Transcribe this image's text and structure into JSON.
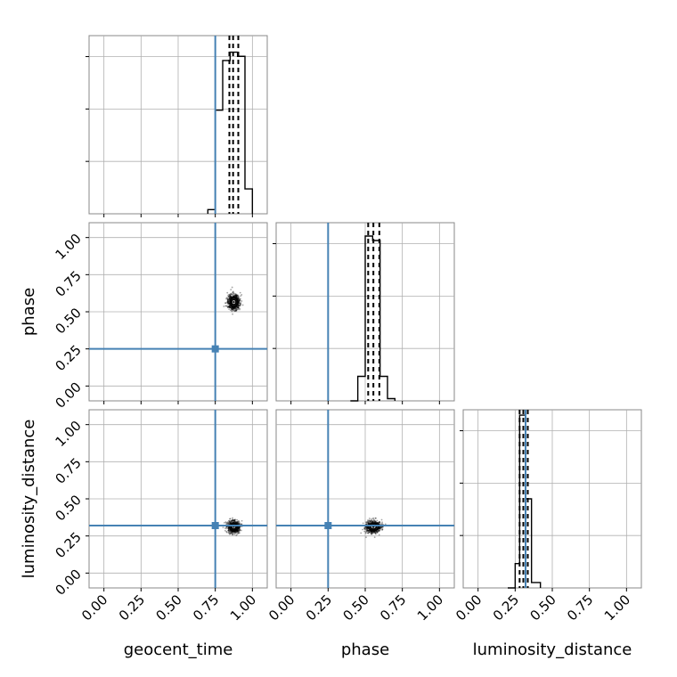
{
  "chart_data": {
    "type": "corner",
    "parameters": [
      "geocent_time",
      "phase",
      "luminosity_distance"
    ],
    "range": [
      -0.1,
      1.1
    ],
    "tick_values": [
      0.0,
      0.25,
      0.5,
      0.75,
      1.0
    ],
    "tick_labels": [
      "0.00",
      "0.25",
      "0.50",
      "0.75",
      "1.00"
    ],
    "grid": true,
    "truth_color": "#4682b4",
    "truths": {
      "geocent_time": 0.75,
      "phase": 0.25,
      "luminosity_distance": 0.32
    },
    "histograms": {
      "geocent_time": {
        "bins": [
          [
            0.7,
            0.75,
            0.01
          ],
          [
            0.75,
            0.8,
            0.25
          ],
          [
            0.8,
            0.85,
            0.37
          ],
          [
            0.85,
            0.9,
            0.39
          ],
          [
            0.9,
            0.95,
            0.38
          ],
          [
            0.95,
            1.0,
            0.06
          ]
        ],
        "ymax": 0.43,
        "quantiles": [
          0.845,
          0.87,
          0.905
        ]
      },
      "phase": {
        "bins": [
          [
            0.4,
            0.45,
            0.0
          ],
          [
            0.45,
            0.5,
            0.055
          ],
          [
            0.5,
            0.55,
            0.37
          ],
          [
            0.55,
            0.6,
            0.36
          ],
          [
            0.6,
            0.65,
            0.055
          ],
          [
            0.65,
            0.7,
            0.005
          ]
        ],
        "ymax": 0.4,
        "quantiles": [
          0.52,
          0.555,
          0.595
        ]
      },
      "luminosity_distance": {
        "bins": [
          [
            0.2,
            0.25,
            0.0
          ],
          [
            0.25,
            0.28,
            0.045
          ],
          [
            0.28,
            0.32,
            0.32
          ],
          [
            0.32,
            0.36,
            0.165
          ],
          [
            0.36,
            0.42,
            0.01
          ]
        ],
        "ymax": 0.33,
        "quantiles": [
          0.28,
          0.305,
          0.335
        ]
      }
    },
    "scatter_2d": [
      {
        "x": "geocent_time",
        "y": "phase",
        "center": [
          0.875,
          0.565
        ],
        "spread": [
          0.035,
          0.045
        ]
      },
      {
        "x": "geocent_time",
        "y": "luminosity_distance",
        "center": [
          0.875,
          0.31
        ],
        "spread": [
          0.035,
          0.035
        ]
      },
      {
        "x": "phase",
        "y": "luminosity_distance",
        "center": [
          0.555,
          0.31
        ],
        "spread": [
          0.045,
          0.035
        ]
      }
    ]
  }
}
